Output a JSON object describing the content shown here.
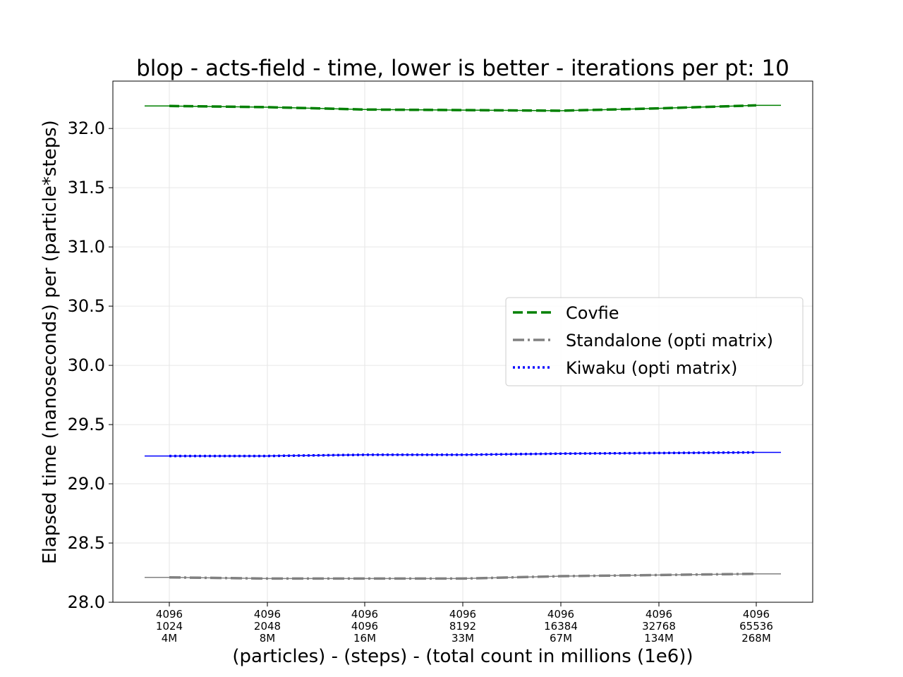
{
  "chart_data": {
    "type": "line",
    "title": "blop - acts-field - time, lower is better - iterations per pt: 10",
    "xlabel": "(particles) - (steps) - (total count in millions (1e6))",
    "ylabel": "Elapsed time (nanoseconds) per (particle*steps)",
    "ylim": [
      28.0,
      32.4
    ],
    "yticks": [
      "28.0",
      "28.5",
      "29.0",
      "29.5",
      "30.0",
      "30.5",
      "31.0",
      "31.5",
      "32.0"
    ],
    "categories": [
      [
        "4096",
        "1024",
        "4M"
      ],
      [
        "4096",
        "2048",
        "8M"
      ],
      [
        "4096",
        "4096",
        "16M"
      ],
      [
        "4096",
        "8192",
        "33M"
      ],
      [
        "4096",
        "16384",
        "67M"
      ],
      [
        "4096",
        "32768",
        "134M"
      ],
      [
        "4096",
        "65536",
        "268M"
      ]
    ],
    "grid": true,
    "legend_position": "center-right",
    "series": [
      {
        "name": "Covfie",
        "color": "#008000",
        "style": "dashed",
        "values": [
          32.19,
          32.18,
          32.16,
          32.155,
          32.15,
          32.17,
          32.195
        ]
      },
      {
        "name": "Standalone (opti matrix)",
        "color": "#808080",
        "style": "dashdot",
        "values": [
          28.21,
          28.2,
          28.2,
          28.2,
          28.22,
          28.23,
          28.24
        ]
      },
      {
        "name": "Kiwaku (opti matrix)",
        "color": "#0000ff",
        "style": "dotted",
        "values": [
          29.235,
          29.235,
          29.245,
          29.245,
          29.255,
          29.26,
          29.265
        ]
      }
    ]
  }
}
